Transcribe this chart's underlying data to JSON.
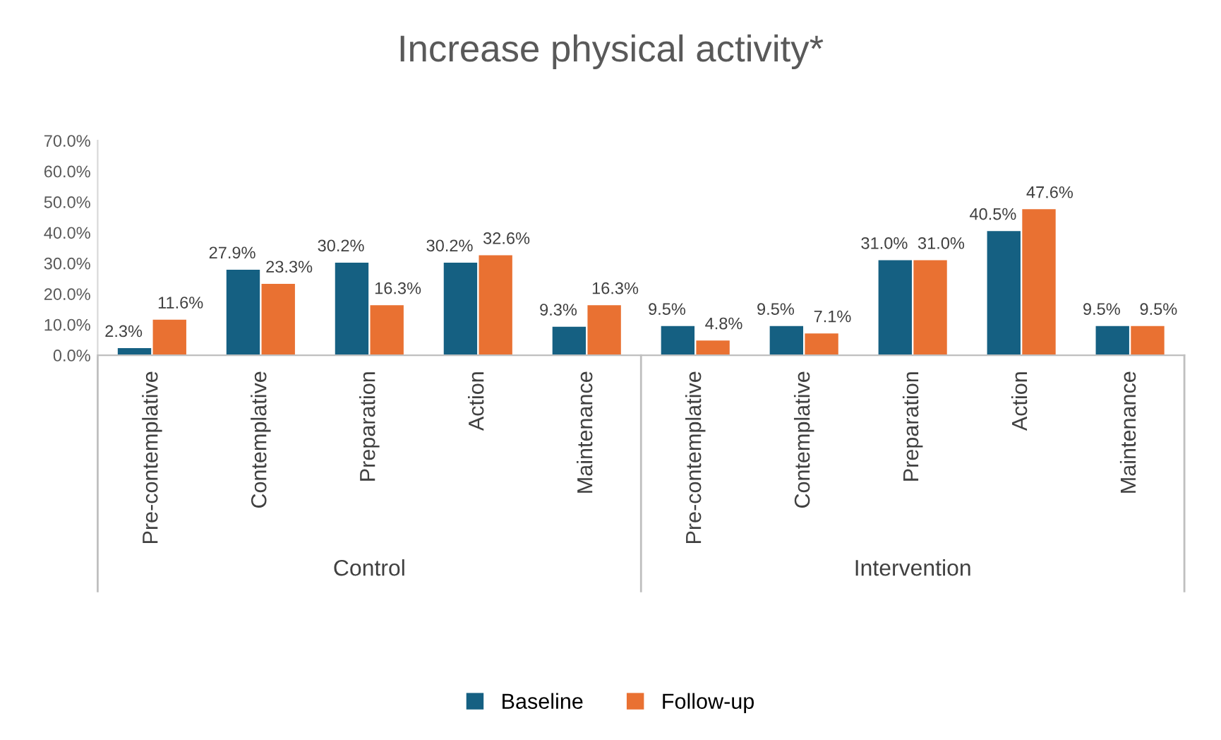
{
  "chart_data": {
    "type": "bar",
    "title": "Increase physical activity*",
    "categories": [
      "Pre-contemplative",
      "Contemplative",
      "Preparation",
      "Action",
      "Maintenance",
      "Pre-contemplative",
      "Contemplative",
      "Preparation",
      "Action",
      "Maintenance"
    ],
    "series": [
      {
        "name": "Baseline",
        "color": "#156082",
        "values": [
          2.3,
          27.9,
          30.2,
          30.2,
          9.3,
          9.5,
          9.5,
          31.0,
          40.5,
          9.5
        ],
        "value_labels": [
          "2.3%",
          "27.9%",
          "30.2%",
          "30.2%",
          "9.3%",
          "9.5%",
          "9.5%",
          "31.0%",
          "40.5%",
          "9.5%"
        ]
      },
      {
        "name": "Follow-up",
        "color": "#e97132",
        "values": [
          11.6,
          23.3,
          16.3,
          32.6,
          16.3,
          4.8,
          7.1,
          31.0,
          47.6,
          9.5
        ],
        "value_labels": [
          "11.6%",
          "23.3%",
          "16.3%",
          "32.6%",
          "16.3%",
          "4.8%",
          "7.1%",
          "31.0%",
          "47.6%",
          "9.5%"
        ]
      }
    ],
    "annotations": [
      "Control",
      "Intervention"
    ],
    "ylim": [
      0,
      70
    ],
    "yticks": [
      {
        "value": 0,
        "label": "0.0%"
      },
      {
        "value": 10,
        "label": "10.0%"
      },
      {
        "value": 20,
        "label": "20.0%"
      },
      {
        "value": 30,
        "label": "30.0%"
      },
      {
        "value": 40,
        "label": "40.0%"
      },
      {
        "value": 50,
        "label": "50.0%"
      },
      {
        "value": 60,
        "label": "60.0%"
      },
      {
        "value": 70,
        "label": "70.0%"
      }
    ],
    "grid": false,
    "legend": "bottom"
  }
}
